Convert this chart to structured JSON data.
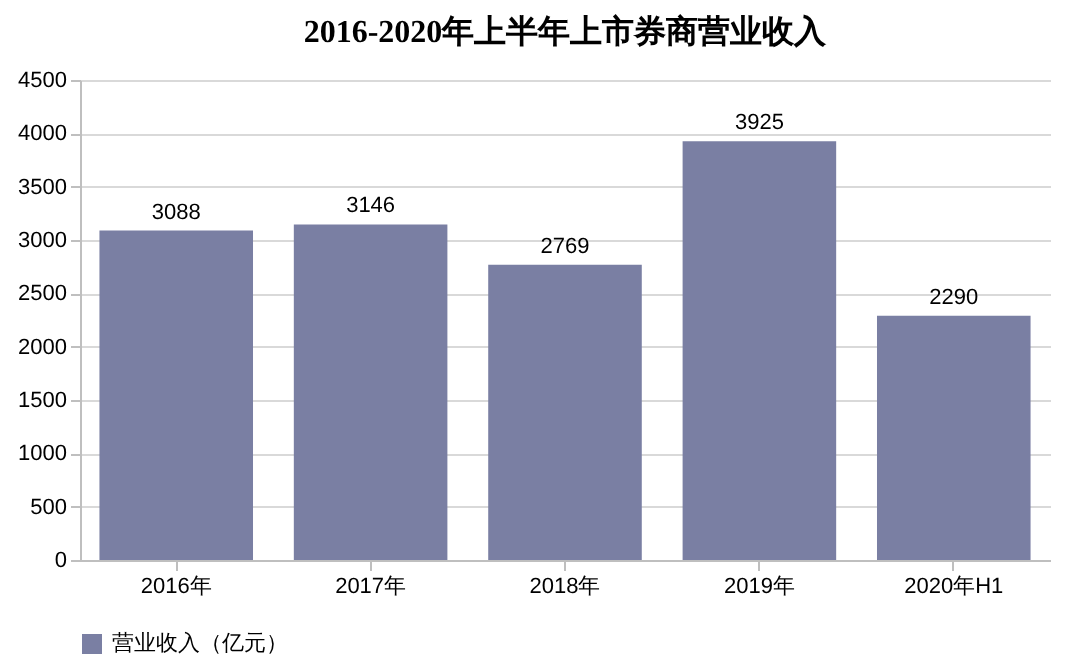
{
  "chart_data": {
    "type": "bar",
    "title": "2016-2020年上半年上市券商营业收入",
    "categories": [
      "2016年",
      "2017年",
      "2018年",
      "2019年",
      "2020年H1"
    ],
    "series": [
      {
        "name": "营业收入（亿元）",
        "color": "#7a7fa3",
        "values": [
          3088,
          3146,
          2769,
          3925,
          2290
        ]
      }
    ],
    "ylim": [
      0,
      4500
    ],
    "yticks": [
      0,
      500,
      1000,
      1500,
      2000,
      2500,
      3000,
      3500,
      4000,
      4500
    ],
    "grid": "y",
    "legend": "bottom",
    "data_labels": true
  }
}
